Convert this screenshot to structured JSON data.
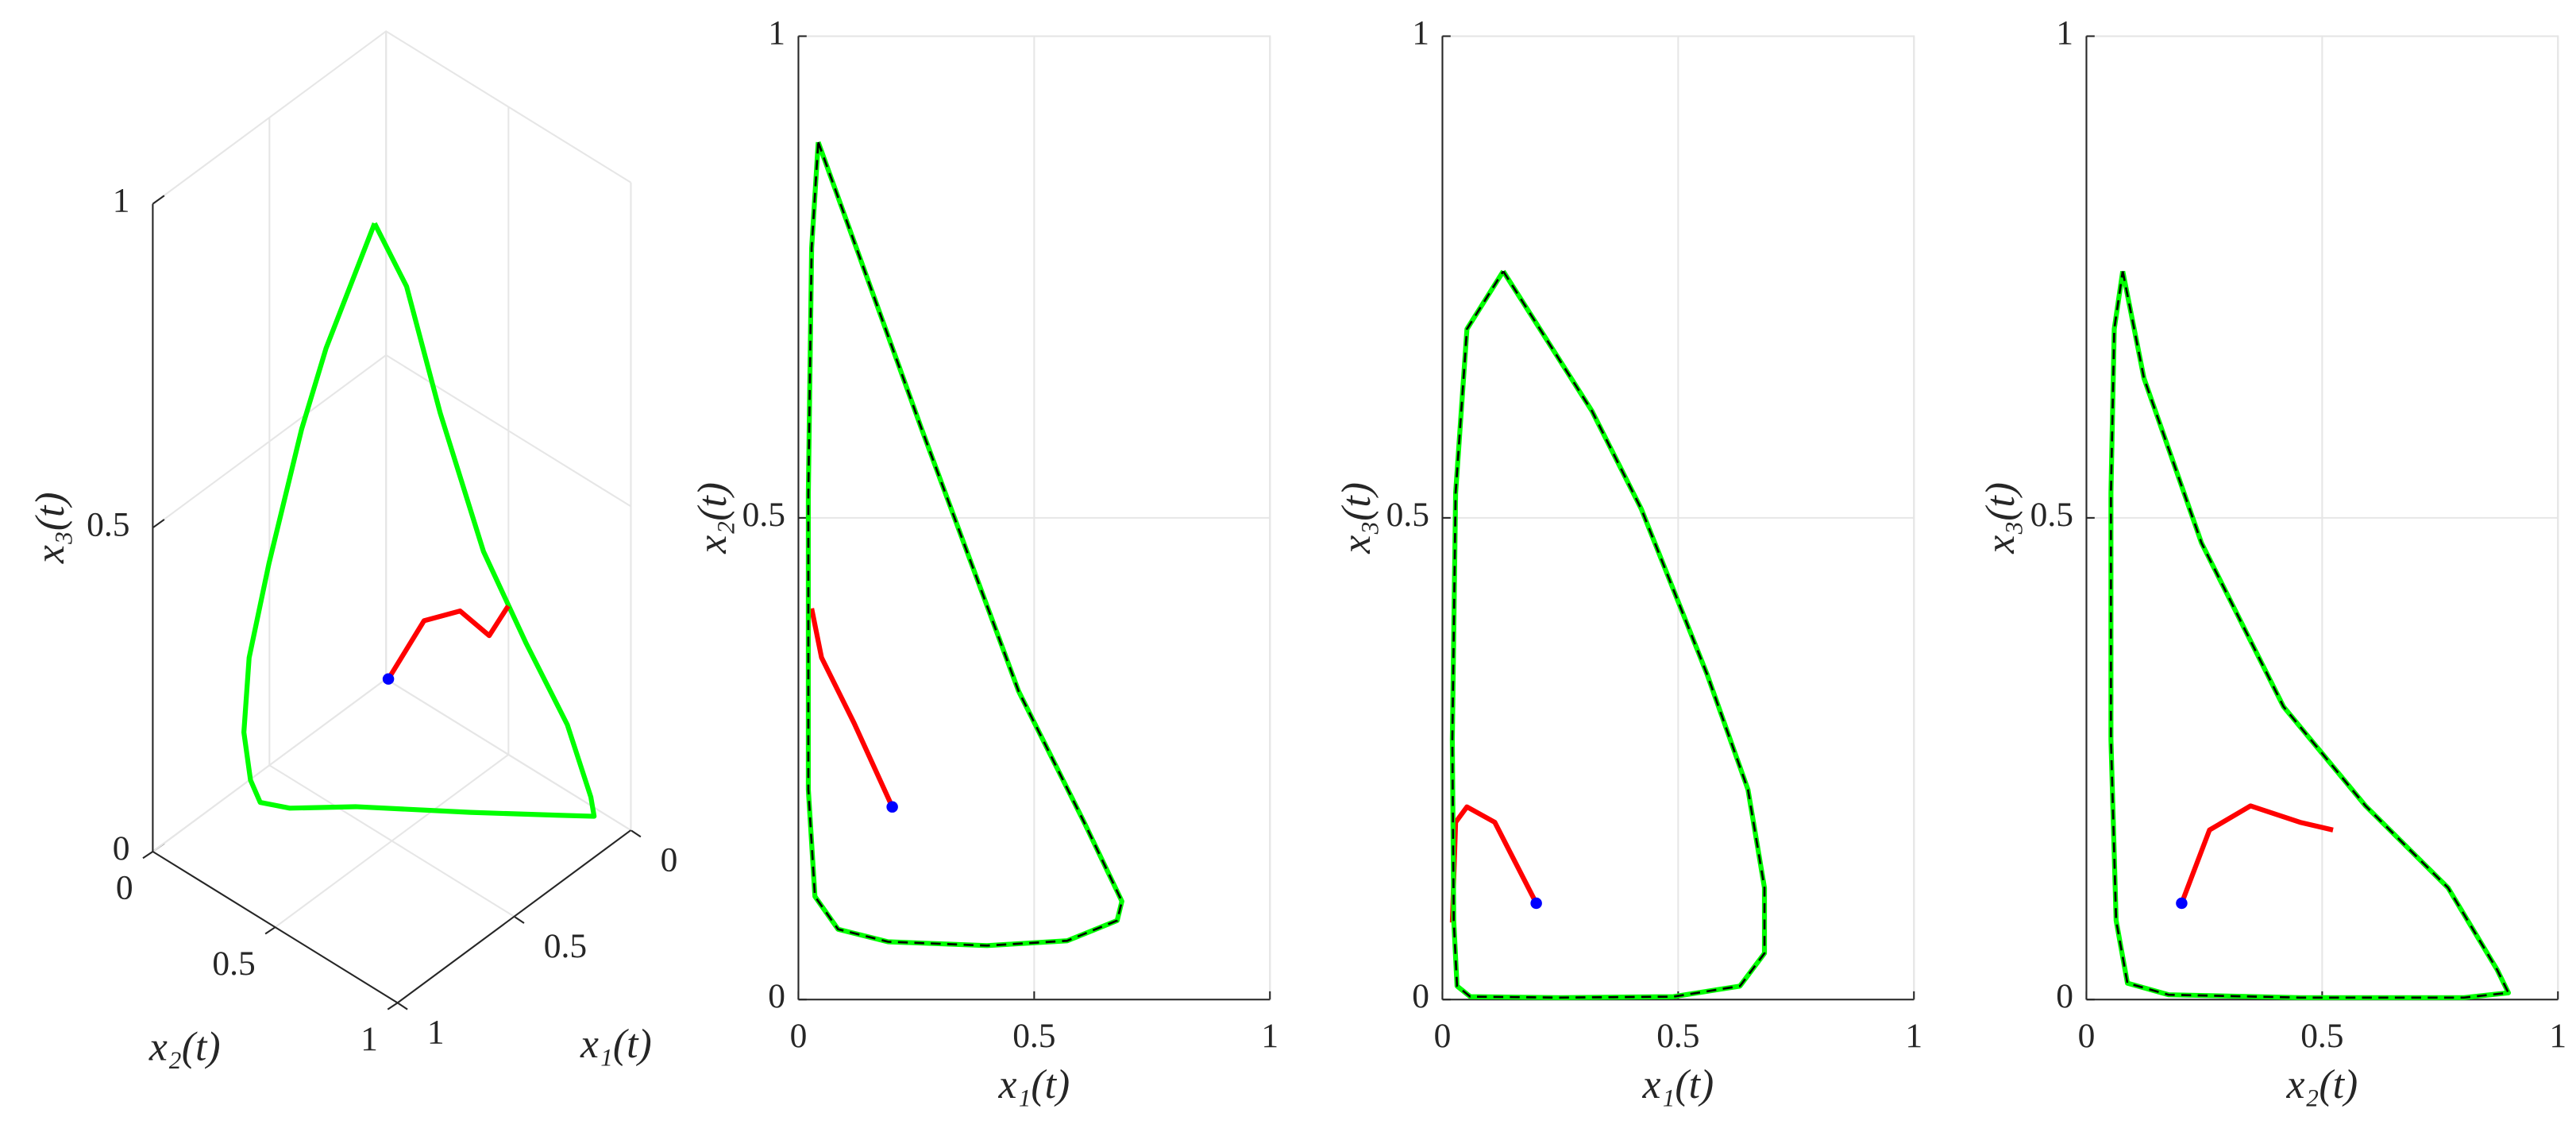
{
  "chart_data": [
    {
      "type": "line3d",
      "xlabel": "x₁(t)",
      "ylabel": "x₂(t)",
      "zlabel": "x₃(t)",
      "xlim": [
        0,
        1
      ],
      "ylim": [
        0,
        1
      ],
      "zlim": [
        0,
        1
      ],
      "xticks": [
        0,
        0.5,
        1
      ],
      "yticks": [
        0,
        0.5,
        1
      ],
      "zticks": [
        0,
        0.5,
        1
      ],
      "grid": true,
      "start_marker_color": "#0000ff",
      "series": [
        {
          "color": "#00ff00",
          "x": [
            0.13,
            0.32,
            0.42,
            0.56,
            0.65,
            0.683,
            0.686,
            0.676,
            0.606,
            0.467,
            0.26,
            0.1,
            0.042,
            0.035,
            0.028,
            0.022,
            0.021,
            0.024,
            0.04,
            0.13
          ],
          "y": [
            0.077,
            0.06,
            0.055,
            0.055,
            0.06,
            0.07,
            0.1,
            0.13,
            0.184,
            0.32,
            0.594,
            0.8,
            0.89,
            0.87,
            0.767,
            0.592,
            0.418,
            0.244,
            0.122,
            0.077
          ],
          "z": [
            0.756,
            0.61,
            0.51,
            0.34,
            0.22,
            0.116,
            0.05,
            0.02,
            0.005,
            0.002,
            0.002,
            0.003,
            0.007,
            0.03,
            0.116,
            0.2,
            0.3,
            0.474,
            0.645,
            0.756
          ]
        },
        {
          "color": "#ff0000",
          "x": [
            0.2,
            0.11,
            0.05,
            0.03,
            0.022
          ],
          "y": [
            0.2,
            0.26,
            0.35,
            0.45,
            0.52
          ],
          "z": [
            0.1,
            0.18,
            0.2,
            0.18,
            0.24
          ]
        }
      ]
    },
    {
      "type": "line",
      "xlabel": "x₁(t)",
      "ylabel": "x₂(t)",
      "xlim": [
        0,
        1
      ],
      "ylim": [
        0,
        1
      ],
      "xticks": [
        0,
        0.5,
        1
      ],
      "yticks": [
        0,
        0.5,
        1
      ],
      "grid": true,
      "start_marker_color": "#0000ff",
      "series": [
        {
          "color": "#00ff00",
          "overlay_color": "#000000",
          "x": [
            0.042,
            0.26,
            0.467,
            0.606,
            0.686,
            0.676,
            0.57,
            0.4,
            0.19,
            0.084,
            0.035,
            0.021,
            0.021,
            0.028,
            0.042
          ],
          "values": [
            0.89,
            0.594,
            0.32,
            0.184,
            0.102,
            0.082,
            0.061,
            0.056,
            0.06,
            0.073,
            0.107,
            0.218,
            0.525,
            0.78,
            0.89
          ]
        },
        {
          "color": "#ff0000",
          "x": [
            0.199,
            0.118,
            0.049,
            0.028
          ],
          "values": [
            0.2,
            0.287,
            0.355,
            0.406
          ]
        }
      ]
    },
    {
      "type": "line",
      "xlabel": "x₁(t)",
      "ylabel": "x₃(t)",
      "xlim": [
        0,
        1
      ],
      "ylim": [
        0,
        1
      ],
      "xticks": [
        0,
        0.5,
        1
      ],
      "yticks": [
        0,
        0.5,
        1
      ],
      "grid": true,
      "start_marker_color": "#0000ff",
      "series": [
        {
          "color": "#00ff00",
          "overlay_color": "#000000",
          "x": [
            0.129,
            0.317,
            0.422,
            0.561,
            0.648,
            0.683,
            0.683,
            0.631,
            0.49,
            0.247,
            0.059,
            0.031,
            0.024,
            0.021,
            0.028,
            0.052,
            0.129
          ],
          "values": [
            0.756,
            0.611,
            0.509,
            0.338,
            0.218,
            0.116,
            0.048,
            0.014,
            0.003,
            0.002,
            0.003,
            0.014,
            0.082,
            0.27,
            0.526,
            0.696,
            0.756
          ]
        },
        {
          "color": "#ff0000",
          "x": [
            0.199,
            0.111,
            0.052,
            0.028,
            0.021
          ],
          "values": [
            0.1,
            0.184,
            0.2,
            0.184,
            0.08
          ]
        }
      ]
    },
    {
      "type": "line",
      "xlabel": "x₂(t)",
      "ylabel": "x₃(t)",
      "xlim": [
        0,
        1
      ],
      "ylim": [
        0,
        1
      ],
      "xticks": [
        0,
        0.5,
        1
      ],
      "yticks": [
        0,
        0.5,
        1
      ],
      "grid": true,
      "start_marker_color": "#0000ff",
      "series": [
        {
          "color": "#00ff00",
          "overlay_color": "#000000",
          "x": [
            0.077,
            0.122,
            0.244,
            0.418,
            0.592,
            0.767,
            0.871,
            0.895,
            0.801,
            0.453,
            0.174,
            0.087,
            0.063,
            0.052,
            0.052,
            0.059,
            0.077
          ],
          "values": [
            0.756,
            0.645,
            0.474,
            0.304,
            0.201,
            0.116,
            0.031,
            0.007,
            0.002,
            0.002,
            0.005,
            0.017,
            0.082,
            0.27,
            0.526,
            0.696,
            0.756
          ]
        },
        {
          "color": "#ff0000",
          "x": [
            0.202,
            0.261,
            0.348,
            0.453,
            0.523
          ],
          "values": [
            0.1,
            0.176,
            0.201,
            0.184,
            0.176
          ]
        }
      ]
    }
  ]
}
